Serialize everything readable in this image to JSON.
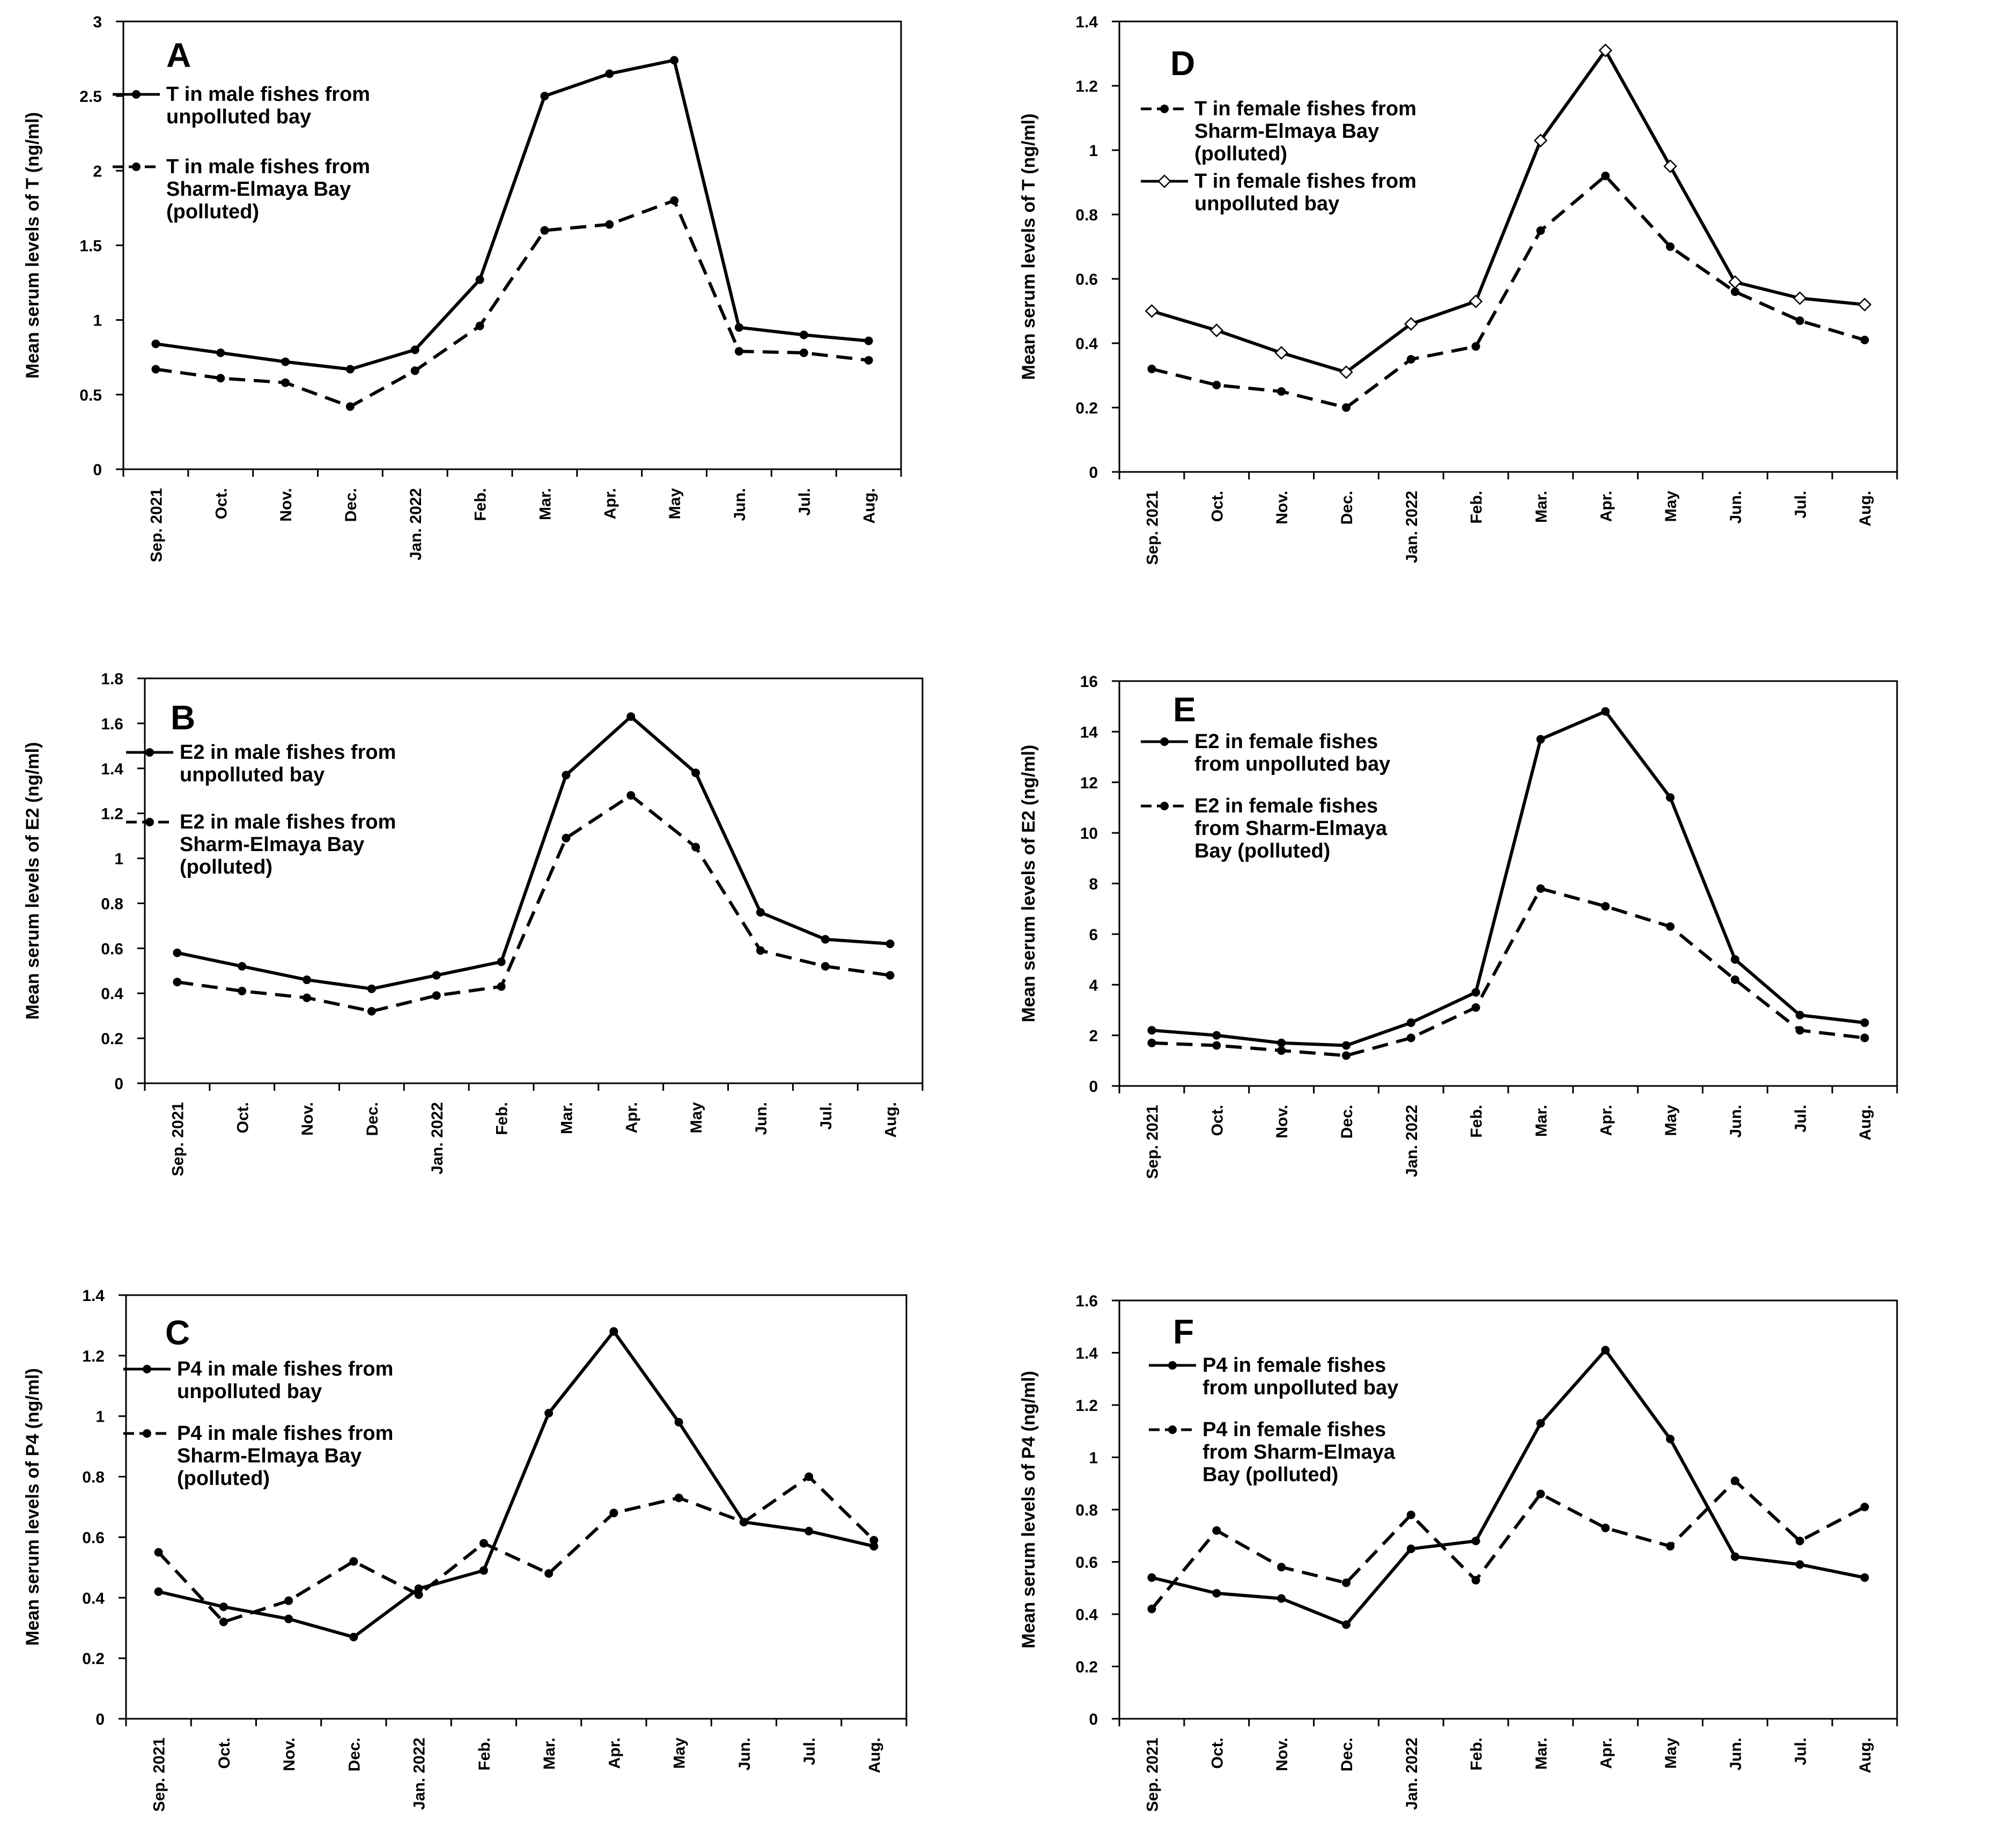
{
  "chart_data": [
    {
      "type": "line",
      "panel": "A",
      "title": "",
      "xlabel": "",
      "ylabel": "Mean serum levels of  T (ng/ml)",
      "categories": [
        "Sep. 2021",
        "Oct.",
        "Nov.",
        "Dec.",
        "Jan. 2022",
        "Feb.",
        "Mar.",
        "Apr.",
        "May",
        "Jun.",
        "Jul.",
        "Aug."
      ],
      "yticks": [
        "0",
        "0.5",
        "1",
        "1.5",
        "2",
        "2.5",
        "3"
      ],
      "ylim": [
        0,
        3
      ],
      "legend_position": "top-left",
      "series": [
        {
          "name": "T  in male fishes from unpolluted bay",
          "legend_lines": [
            "T  in male fishes from",
            "unpolluted bay"
          ],
          "style": "solid",
          "marker": "dot",
          "values": [
            0.84,
            0.78,
            0.72,
            0.67,
            0.8,
            1.27,
            2.5,
            2.65,
            2.74,
            0.95,
            0.9,
            0.86
          ]
        },
        {
          "name": "T  in male fishes from Sharm-Elmaya Bay (polluted)",
          "legend_lines": [
            "T  in male fishes from",
            "Sharm-Elmaya Bay",
            "(polluted)"
          ],
          "style": "dashed",
          "marker": "dot",
          "values": [
            0.67,
            0.61,
            0.58,
            0.42,
            0.66,
            0.96,
            1.6,
            1.64,
            1.8,
            0.79,
            0.78,
            0.73
          ]
        }
      ]
    },
    {
      "type": "line",
      "panel": "D",
      "title": "",
      "xlabel": "",
      "ylabel": "Mean serum levels of  T (ng/ml)",
      "categories": [
        "Sep. 2021",
        "Oct.",
        "Nov.",
        "Dec.",
        "Jan. 2022",
        "Feb.",
        "Mar.",
        "Apr.",
        "May",
        "Jun.",
        "Jul.",
        "Aug."
      ],
      "yticks": [
        "0",
        "0.2",
        "0.4",
        "0.6",
        "0.8",
        "1",
        "1.2",
        "1.4"
      ],
      "ylim": [
        0,
        1.4
      ],
      "legend_position": "top-left",
      "series": [
        {
          "name": "T  in female fishes from Sharm-Elmaya Bay (polluted)",
          "legend_lines": [
            "T  in female fishes from",
            "Sharm-Elmaya Bay",
            "(polluted)"
          ],
          "style": "dashed",
          "marker": "dot",
          "values": [
            0.32,
            0.27,
            0.25,
            0.2,
            0.35,
            0.39,
            0.75,
            0.92,
            0.7,
            0.56,
            0.47,
            0.41
          ]
        },
        {
          "name": "T  in female fishes from unpolluted bay",
          "legend_lines": [
            "T  in female fishes from",
            "unpolluted bay"
          ],
          "style": "solid",
          "marker": "diamond",
          "values": [
            0.5,
            0.44,
            0.37,
            0.31,
            0.46,
            0.53,
            1.03,
            1.31,
            0.95,
            0.59,
            0.54,
            0.52
          ]
        }
      ]
    },
    {
      "type": "line",
      "panel": "B",
      "title": "",
      "xlabel": "",
      "ylabel": "Mean serum levels of  E2 (ng/ml)",
      "categories": [
        "Sep. 2021",
        "Oct.",
        "Nov.",
        "Dec.",
        "Jan. 2022",
        "Feb.",
        "Mar.",
        "Apr.",
        "May",
        "Jun.",
        "Jul.",
        "Aug."
      ],
      "yticks": [
        "0",
        "0.2",
        "0.4",
        "0.6",
        "0.8",
        "1",
        "1.2",
        "1.4",
        "1.6",
        "1.8"
      ],
      "ylim": [
        0,
        1.8
      ],
      "legend_position": "top-left",
      "series": [
        {
          "name": "E2 in male fishes from unpolluted bay",
          "legend_lines": [
            "E2 in male fishes from",
            "unpolluted bay"
          ],
          "style": "solid",
          "marker": "dot",
          "values": [
            0.58,
            0.52,
            0.46,
            0.42,
            0.48,
            0.54,
            1.37,
            1.63,
            1.38,
            0.76,
            0.64,
            0.62
          ]
        },
        {
          "name": "E2 in male fishes from Sharm-Elmaya Bay (polluted)",
          "legend_lines": [
            "E2 in male fishes from",
            "Sharm-Elmaya Bay",
            "(polluted)"
          ],
          "style": "dashed",
          "marker": "dot",
          "values": [
            0.45,
            0.41,
            0.38,
            0.32,
            0.39,
            0.43,
            1.09,
            1.28,
            1.05,
            0.59,
            0.52,
            0.48
          ]
        }
      ]
    },
    {
      "type": "line",
      "panel": "E",
      "title": "",
      "xlabel": "",
      "ylabel": "Mean serum levels of  E2 (ng/ml)",
      "categories": [
        "Sep. 2021",
        "Oct.",
        "Nov.",
        "Dec.",
        "Jan. 2022",
        "Feb.",
        "Mar.",
        "Apr.",
        "May",
        "Jun.",
        "Jul.",
        "Aug."
      ],
      "yticks": [
        "0",
        "2",
        "4",
        "6",
        "8",
        "10",
        "12",
        "14",
        "16"
      ],
      "ylim": [
        0,
        16
      ],
      "legend_position": "top-left",
      "series": [
        {
          "name": "E2  in female fishes from unpolluted bay",
          "legend_lines": [
            "E2  in female fishes",
            "from unpolluted bay"
          ],
          "style": "solid",
          "marker": "dot",
          "values": [
            2.2,
            2.0,
            1.7,
            1.6,
            2.5,
            3.7,
            13.7,
            14.8,
            11.4,
            5.0,
            2.8,
            2.5
          ]
        },
        {
          "name": "E2  in female fishes from Sharm-Elmaya Bay (polluted)",
          "legend_lines": [
            "E2  in female fishes",
            "from Sharm-Elmaya",
            "Bay (polluted)"
          ],
          "style": "dashed",
          "marker": "dot",
          "values": [
            1.7,
            1.6,
            1.4,
            1.2,
            1.9,
            3.1,
            7.8,
            7.1,
            6.3,
            4.2,
            2.2,
            1.9
          ]
        }
      ]
    },
    {
      "type": "line",
      "panel": "C",
      "title": "",
      "xlabel": "",
      "ylabel": "Mean serum levels of  P4 (ng/ml)",
      "categories": [
        "Sep. 2021",
        "Oct.",
        "Nov.",
        "Dec.",
        "Jan. 2022",
        "Feb.",
        "Mar.",
        "Apr.",
        "May",
        "Jun.",
        "Jul.",
        "Aug."
      ],
      "yticks": [
        "0",
        "0.2",
        "0.4",
        "0.6",
        "0.8",
        "1",
        "1.2",
        "1.4"
      ],
      "ylim": [
        0,
        1.4
      ],
      "legend_position": "top-left",
      "series": [
        {
          "name": "P4 in male fishes from unpolluted bay",
          "legend_lines": [
            "P4 in male fishes from",
            "unpolluted bay"
          ],
          "style": "solid",
          "marker": "dot",
          "values": [
            0.42,
            0.37,
            0.33,
            0.27,
            0.43,
            0.49,
            1.01,
            1.28,
            0.98,
            0.65,
            0.62,
            0.57
          ]
        },
        {
          "name": "P4 in male fishes from Sharm-Elmaya Bay (polluted)",
          "legend_lines": [
            "P4 in male fishes from",
            "Sharm-Elmaya Bay",
            "(polluted)"
          ],
          "style": "dashed",
          "marker": "dot",
          "values": [
            0.55,
            0.32,
            0.39,
            0.52,
            0.41,
            0.58,
            0.48,
            0.68,
            0.73,
            0.65,
            0.8,
            0.59
          ]
        }
      ]
    },
    {
      "type": "line",
      "panel": "F",
      "title": "",
      "xlabel": "",
      "ylabel": "Mean serum levels of  P4 (ng/ml)",
      "categories": [
        "Sep. 2021",
        "Oct.",
        "Nov.",
        "Dec.",
        "Jan. 2022",
        "Feb.",
        "Mar.",
        "Apr.",
        "May",
        "Jun.",
        "Jul.",
        "Aug."
      ],
      "yticks": [
        "0",
        "0.2",
        "0.4",
        "0.6",
        "0.8",
        "1",
        "1.2",
        "1.4",
        "1.6"
      ],
      "ylim": [
        0,
        1.6
      ],
      "legend_position": "top-left",
      "series": [
        {
          "name": "P4  in female fishes from unpolluted bay",
          "legend_lines": [
            "P4  in female fishes",
            "from unpolluted bay"
          ],
          "style": "solid",
          "marker": "dot",
          "values": [
            0.54,
            0.48,
            0.46,
            0.36,
            0.65,
            0.68,
            1.13,
            1.41,
            1.07,
            0.62,
            0.59,
            0.54
          ]
        },
        {
          "name": "P4  in female fishes from Sharm-Elmaya Bay (polluted)",
          "legend_lines": [
            "P4  in female fishes",
            "from Sharm-Elmaya",
            "Bay (polluted)"
          ],
          "style": "dashed",
          "marker": "dot",
          "values": [
            0.42,
            0.72,
            0.58,
            0.52,
            0.78,
            0.53,
            0.86,
            0.73,
            0.66,
            0.91,
            0.68,
            0.81
          ]
        }
      ]
    }
  ]
}
